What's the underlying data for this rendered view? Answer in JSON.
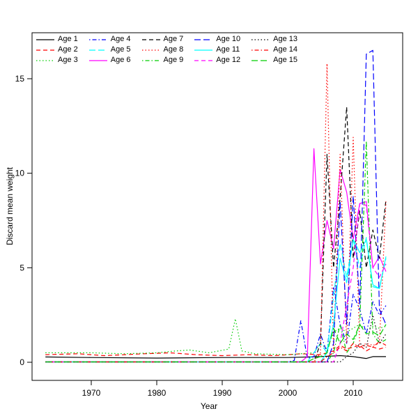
{
  "chart_data": {
    "type": "line",
    "title": "",
    "xlabel": "Year",
    "ylabel": "Discard mean weight",
    "xlim": [
      1963,
      2015
    ],
    "ylim": [
      0,
      16.5
    ],
    "x_ticks": [
      1970,
      1980,
      1990,
      2000,
      2010
    ],
    "y_ticks": [
      0,
      5,
      10,
      15
    ],
    "grid": false,
    "legend_position": "top-left",
    "legend_columns": 5,
    "series": [
      {
        "name": "Age 1",
        "color": "#000000",
        "linetype": "solid",
        "points": [
          [
            1963,
            0.28
          ],
          [
            1970,
            0.25
          ],
          [
            1980,
            0.22
          ],
          [
            1990,
            0.25
          ],
          [
            2000,
            0.25
          ],
          [
            2005,
            0.3
          ],
          [
            2008,
            0.35
          ],
          [
            2010,
            0.3
          ],
          [
            2012,
            0.2
          ],
          [
            2013,
            0.3
          ],
          [
            2015,
            0.3
          ]
        ]
      },
      {
        "name": "Age 2",
        "color": "#FF0000",
        "linetype": "dashed",
        "points": [
          [
            1963,
            0.4
          ],
          [
            1968,
            0.45
          ],
          [
            1972,
            0.35
          ],
          [
            1978,
            0.45
          ],
          [
            1982,
            0.5
          ],
          [
            1986,
            0.4
          ],
          [
            1990,
            0.35
          ],
          [
            1994,
            0.4
          ],
          [
            1998,
            0.35
          ],
          [
            2002,
            0.45
          ],
          [
            2005,
            0.4
          ],
          [
            2007,
            0.6
          ],
          [
            2008,
            0.9
          ],
          [
            2009,
            0.7
          ],
          [
            2010,
            0.8
          ],
          [
            2011,
            0.9
          ],
          [
            2012,
            0.6
          ],
          [
            2013,
            0.8
          ],
          [
            2014,
            0.7
          ],
          [
            2015,
            0.8
          ]
        ]
      },
      {
        "name": "Age 3",
        "color": "#00CD00",
        "linetype": "dotted",
        "points": [
          [
            1963,
            0.5
          ],
          [
            1970,
            0.5
          ],
          [
            1975,
            0.45
          ],
          [
            1980,
            0.5
          ],
          [
            1983,
            0.6
          ],
          [
            1985,
            0.65
          ],
          [
            1988,
            0.5
          ],
          [
            1991,
            0.7
          ],
          [
            1992,
            2.3
          ],
          [
            1993,
            0.6
          ],
          [
            1995,
            0.45
          ],
          [
            2000,
            0.4
          ],
          [
            2004,
            0.5
          ],
          [
            2005,
            1.0
          ],
          [
            2006,
            0.7
          ],
          [
            2007,
            1.6
          ],
          [
            2008,
            1.8
          ],
          [
            2009,
            1.6
          ],
          [
            2010,
            1.8
          ],
          [
            2011,
            2.0
          ],
          [
            2012,
            1.7
          ],
          [
            2013,
            1.9
          ],
          [
            2014,
            1.8
          ],
          [
            2015,
            1.9
          ]
        ]
      },
      {
        "name": "Age 4",
        "color": "#0000FF",
        "linetype": "dotdash",
        "points": [
          [
            1963,
            0.02
          ],
          [
            2000,
            0.02
          ],
          [
            2001,
            0.1
          ],
          [
            2002,
            2.2
          ],
          [
            2003,
            0.2
          ],
          [
            2004,
            0.3
          ],
          [
            2005,
            1.5
          ],
          [
            2006,
            0.5
          ],
          [
            2007,
            4.0
          ],
          [
            2008,
            2.0
          ],
          [
            2009,
            1.0
          ],
          [
            2010,
            3.6
          ],
          [
            2011,
            2.8
          ],
          [
            2012,
            1.5
          ],
          [
            2013,
            3.2
          ],
          [
            2014,
            2.5
          ],
          [
            2015,
            3.0
          ]
        ]
      },
      {
        "name": "Age 5",
        "color": "#00FFFF",
        "linetype": "longdash",
        "points": [
          [
            1963,
            0.02
          ],
          [
            2003,
            0.02
          ],
          [
            2005,
            1.0
          ],
          [
            2006,
            0.5
          ],
          [
            2007,
            3.5
          ],
          [
            2008,
            6.3
          ],
          [
            2009,
            4.5
          ],
          [
            2010,
            6.5
          ],
          [
            2011,
            5.0
          ],
          [
            2012,
            6.6
          ],
          [
            2013,
            4.0
          ],
          [
            2014,
            3.9
          ],
          [
            2015,
            5.5
          ]
        ]
      },
      {
        "name": "Age 6",
        "color": "#FF00FF",
        "linetype": "solid",
        "points": [
          [
            1963,
            0.02
          ],
          [
            2002,
            0.02
          ],
          [
            2003,
            0.3
          ],
          [
            2004,
            11.3
          ],
          [
            2005,
            5.2
          ],
          [
            2006,
            7.5
          ],
          [
            2007,
            6.0
          ],
          [
            2008,
            10.2
          ],
          [
            2009,
            9.0
          ],
          [
            2010,
            6.5
          ],
          [
            2011,
            8.4
          ],
          [
            2012,
            8.5
          ],
          [
            2013,
            5.0
          ],
          [
            2014,
            5.6
          ],
          [
            2015,
            4.8
          ]
        ]
      },
      {
        "name": "Age 7",
        "color": "#000000",
        "linetype": "dashed",
        "points": [
          [
            1963,
            0.02
          ],
          [
            2004,
            0.02
          ],
          [
            2005,
            1.0
          ],
          [
            2006,
            11.0
          ],
          [
            2007,
            5.0
          ],
          [
            2008,
            8.7
          ],
          [
            2009,
            13.5
          ],
          [
            2010,
            5.5
          ],
          [
            2011,
            8.0
          ],
          [
            2012,
            5.0
          ],
          [
            2013,
            7.0
          ],
          [
            2014,
            5.5
          ],
          [
            2015,
            8.6
          ]
        ]
      },
      {
        "name": "Age 8",
        "color": "#FF0000",
        "linetype": "dotted",
        "points": [
          [
            1963,
            0.02
          ],
          [
            2004,
            0.02
          ],
          [
            2005,
            0.5
          ],
          [
            2006,
            15.8
          ],
          [
            2007,
            0.5
          ],
          [
            2008,
            11.0
          ],
          [
            2009,
            1.0
          ],
          [
            2010,
            11.9
          ],
          [
            2011,
            0.8
          ],
          [
            2012,
            1.0
          ],
          [
            2013,
            0.9
          ],
          [
            2014,
            1.0
          ],
          [
            2015,
            8.5
          ]
        ]
      },
      {
        "name": "Age 9",
        "color": "#00CD00",
        "linetype": "dotdash",
        "points": [
          [
            1963,
            0.02
          ],
          [
            2006,
            0.02
          ],
          [
            2007,
            0.5
          ],
          [
            2008,
            2.0
          ],
          [
            2009,
            0.5
          ],
          [
            2010,
            1.0
          ],
          [
            2011,
            2.0
          ],
          [
            2012,
            11.7
          ],
          [
            2013,
            1.5
          ],
          [
            2014,
            1.0
          ],
          [
            2015,
            1.2
          ]
        ]
      },
      {
        "name": "Age 10",
        "color": "#0000FF",
        "linetype": "longdash",
        "points": [
          [
            1963,
            0.02
          ],
          [
            2006,
            0.02
          ],
          [
            2007,
            1.0
          ],
          [
            2008,
            8.5
          ],
          [
            2009,
            2.0
          ],
          [
            2010,
            8.8
          ],
          [
            2011,
            3.0
          ],
          [
            2012,
            16.3
          ],
          [
            2013,
            16.5
          ],
          [
            2014,
            2.8
          ],
          [
            2015,
            2.0
          ]
        ]
      },
      {
        "name": "Age 11",
        "color": "#00FFFF",
        "linetype": "solid",
        "points": [
          [
            1963,
            0.02
          ],
          [
            2005,
            0.02
          ],
          [
            2006,
            0.5
          ],
          [
            2007,
            2.0
          ],
          [
            2008,
            5.5
          ],
          [
            2009,
            4.2
          ],
          [
            2010,
            6.5
          ],
          [
            2011,
            5.8
          ],
          [
            2012,
            6.5
          ],
          [
            2013,
            4.1
          ],
          [
            2014,
            3.9
          ],
          [
            2015,
            5.6
          ]
        ]
      },
      {
        "name": "Age 12",
        "color": "#FF00FF",
        "linetype": "dashed",
        "points": [
          [
            1963,
            0.02
          ],
          [
            2007,
            0.02
          ],
          [
            2008,
            1.0
          ],
          [
            2009,
            3.0
          ],
          [
            2010,
            5.0
          ],
          [
            2011,
            8.4
          ],
          [
            2012,
            8.3
          ],
          [
            2013,
            5.0
          ],
          [
            2014,
            4.5
          ],
          [
            2015,
            5.2
          ]
        ]
      },
      {
        "name": "Age 13",
        "color": "#000000",
        "linetype": "dotted",
        "points": [
          [
            1963,
            0.02
          ],
          [
            2008,
            0.02
          ],
          [
            2009,
            0.3
          ],
          [
            2010,
            0.5
          ],
          [
            2011,
            1.0
          ],
          [
            2012,
            0.8
          ],
          [
            2013,
            2.5
          ],
          [
            2014,
            1.0
          ],
          [
            2015,
            1.5
          ]
        ]
      },
      {
        "name": "Age 14",
        "color": "#FF0000",
        "linetype": "dotdash",
        "points": [
          [
            1963,
            0.02
          ],
          [
            2005,
            0.02
          ],
          [
            2006,
            0.3
          ],
          [
            2007,
            0.5
          ],
          [
            2008,
            0.8
          ],
          [
            2009,
            0.6
          ],
          [
            2010,
            1.0
          ],
          [
            2011,
            0.8
          ],
          [
            2012,
            0.9
          ],
          [
            2013,
            0.8
          ],
          [
            2014,
            1.1
          ],
          [
            2015,
            0.9
          ]
        ]
      },
      {
        "name": "Age 15",
        "color": "#00CD00",
        "linetype": "longdash",
        "points": [
          [
            1963,
            0.02
          ],
          [
            2003,
            0.02
          ],
          [
            2004,
            0.2
          ],
          [
            2005,
            0.3
          ],
          [
            2006,
            0.5
          ],
          [
            2007,
            1.8
          ],
          [
            2008,
            1.0
          ],
          [
            2009,
            1.5
          ],
          [
            2010,
            1.2
          ],
          [
            2011,
            2.0
          ],
          [
            2012,
            1.5
          ],
          [
            2013,
            1.6
          ],
          [
            2014,
            1.4
          ],
          [
            2015,
            2.0
          ]
        ]
      }
    ]
  }
}
